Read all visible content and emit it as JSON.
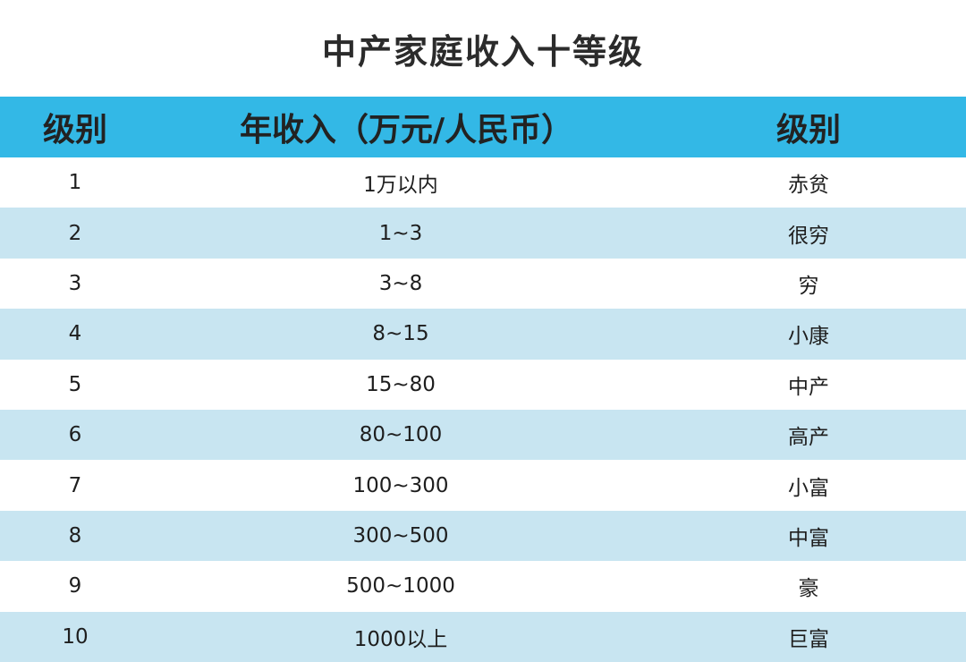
{
  "title": "中产家庭收入十等级",
  "columns": [
    "级别",
    "年收入（万元/人民币）",
    "级别"
  ],
  "rows": [
    [
      "1",
      "1万以内",
      "赤贫"
    ],
    [
      "2",
      "1~3",
      "很穷"
    ],
    [
      "3",
      "3~8",
      "穷"
    ],
    [
      "4",
      "8~15",
      "小康"
    ],
    [
      "5",
      "15~80",
      "中产"
    ],
    [
      "6",
      "80~100",
      "高产"
    ],
    [
      "7",
      "100~300",
      "小富"
    ],
    [
      "8",
      "300~500",
      "中富"
    ],
    [
      "9",
      "500~1000",
      "豪"
    ],
    [
      "10",
      "1000以上",
      "巨富"
    ]
  ],
  "colors": {
    "header_bg": "#33b8e6",
    "row_even_bg": "#c8e5f1",
    "row_odd_bg": "#ffffff"
  }
}
